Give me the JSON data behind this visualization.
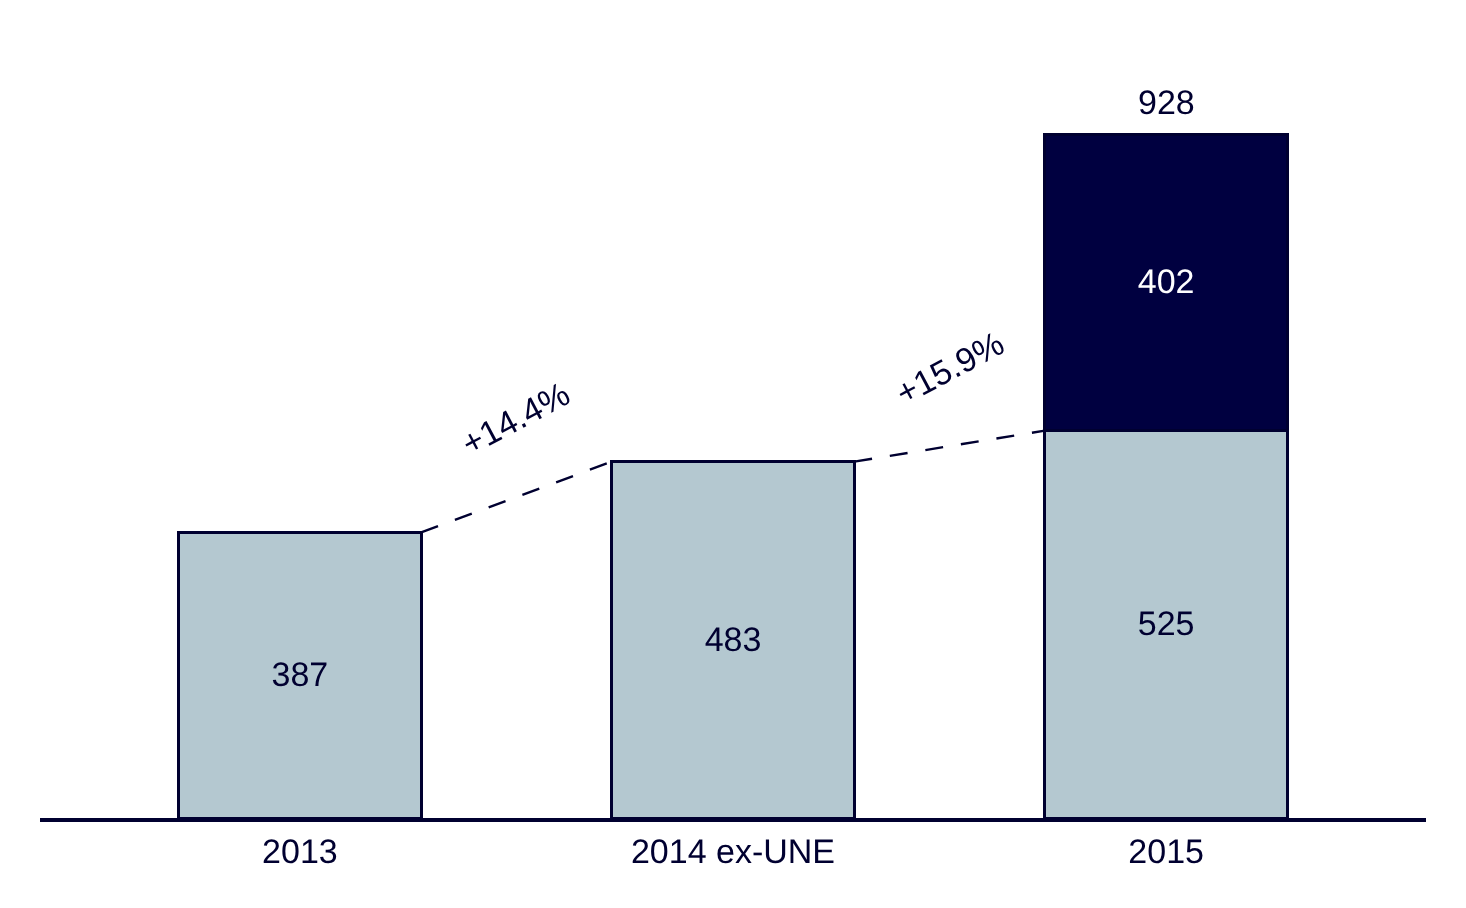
{
  "chart_data": {
    "type": "bar",
    "stacked": true,
    "categories": [
      "2013",
      "2014 ex-UNE",
      "2015"
    ],
    "series": [
      {
        "color": "#b4c8d0",
        "values": [
          387,
          483,
          525
        ]
      },
      {
        "color": "#000040",
        "values": [
          null,
          null,
          402
        ]
      }
    ],
    "data_labels": true,
    "totals": [
      null,
      null,
      "928"
    ],
    "annotations": [
      "+14.4%",
      "+15.9%"
    ]
  }
}
